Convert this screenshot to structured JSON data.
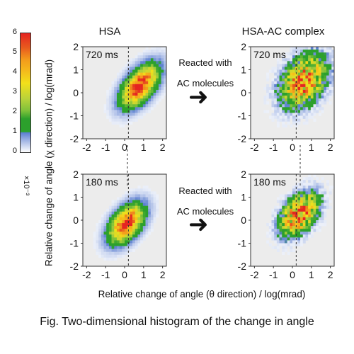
{
  "chart_data": [
    {
      "type": "heatmap",
      "title": "HSA",
      "panel_label": "720 ms",
      "xlim": [
        -2.2,
        2.2
      ],
      "ylim": [
        -2,
        2
      ],
      "xticks": [
        "-2",
        "-1",
        "0",
        "1",
        "2"
      ],
      "yticks": [
        "2",
        "1",
        "0",
        "-1",
        "-2"
      ],
      "peak": {
        "x": 0.8,
        "y": 0.3
      },
      "spread": {
        "x": 0.75,
        "y": 0.7,
        "correlation": 0.55
      },
      "peak_density": 6
    },
    {
      "type": "heatmap",
      "title": "HSA-AC complex",
      "panel_label": "720 ms",
      "xlim": [
        -2.2,
        2.2
      ],
      "ylim": [
        -2,
        2
      ],
      "xticks": [
        "-2",
        "-1",
        "0",
        "1",
        "2"
      ],
      "yticks": [
        "2",
        "1",
        "0",
        "-1",
        "-2"
      ],
      "peak": {
        "x": 0.6,
        "y": 0.5
      },
      "spread": {
        "x": 0.9,
        "y": 0.85,
        "correlation": 0.35
      },
      "peak_density": 5
    },
    {
      "type": "heatmap",
      "title": "HSA",
      "panel_label": "180 ms",
      "xlim": [
        -2.2,
        2.2
      ],
      "ylim": [
        -2,
        2
      ],
      "xticks": [
        "-2",
        "-1",
        "0",
        "1",
        "2"
      ],
      "yticks": [
        "2",
        "1",
        "0",
        "-1",
        "-2"
      ],
      "peak": {
        "x": 0.1,
        "y": -0.15
      },
      "spread": {
        "x": 0.7,
        "y": 0.65,
        "correlation": 0.5
      },
      "peak_density": 6
    },
    {
      "type": "heatmap",
      "title": "HSA-AC complex",
      "panel_label": "180 ms",
      "xlim": [
        -2.2,
        2.2
      ],
      "ylim": [
        -2,
        2
      ],
      "xticks": [
        "-2",
        "-1",
        "0",
        "1",
        "2"
      ],
      "yticks": [
        "2",
        "1",
        "0",
        "-1",
        "-2"
      ],
      "peak": {
        "x": 0.35,
        "y": 0.25
      },
      "spread": {
        "x": 0.75,
        "y": 0.7,
        "correlation": 0.45
      },
      "peak_density": 5.5
    }
  ],
  "colorbar": {
    "ticks": [
      "6",
      "5",
      "4",
      "3",
      "2",
      "1",
      "0"
    ],
    "exponent": "×10⁻³",
    "range": [
      0,
      6
    ],
    "colors": [
      "#ffffff",
      "#5b7fd0",
      "#2ca02c",
      "#b9d23a",
      "#f2e01a",
      "#f39a1c",
      "#e52421"
    ]
  },
  "labels": {
    "col_left": "HSA",
    "col_right": "HSA-AC complex",
    "reaction_top_line1": "Reacted with",
    "reaction_top_line2": "AC molecules",
    "reaction_bottom_line1": "Reacted with",
    "reaction_bottom_line2": "AC molecules",
    "arrow_glyph": "➜",
    "ylabel": "Relative change of angle (χ direction) / log(mrad)",
    "xlabel": "Relative change of angle (θ direction) / log(mrad)",
    "caption": "Fig. Two-dimensional histogram of the change in angle"
  },
  "reference_line_x": 0.2
}
